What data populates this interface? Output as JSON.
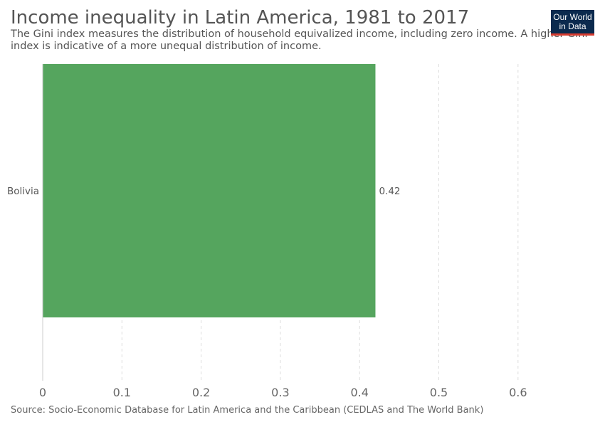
{
  "header": {
    "title": "Income inequality in Latin America, 1981 to 2017",
    "subtitle": "The Gini index measures the distribution of household equivalized income, including zero income. A higher Gini index is indicative of a more unequal distribution of income."
  },
  "logo": {
    "line1": "Our World",
    "line2": "in Data"
  },
  "footer": {
    "source": "Source: Socio-Economic Database for Latin America and the Caribbean (CEDLAS and The World Bank)"
  },
  "chart_data": {
    "type": "bar",
    "orientation": "horizontal",
    "categories": [
      "Bolivia"
    ],
    "values": [
      0.42
    ],
    "value_labels": [
      "0.42"
    ],
    "xlim": [
      0,
      0.6
    ],
    "xticks": [
      0,
      0.1,
      0.2,
      0.3,
      0.4,
      0.5,
      0.6
    ],
    "xtick_labels": [
      "0",
      "0.1",
      "0.2",
      "0.3",
      "0.4",
      "0.5",
      "0.6"
    ],
    "grid": true,
    "bar_color": "#55a55e",
    "grid_color": "#dddddd",
    "axis_color": "#cccccc"
  }
}
